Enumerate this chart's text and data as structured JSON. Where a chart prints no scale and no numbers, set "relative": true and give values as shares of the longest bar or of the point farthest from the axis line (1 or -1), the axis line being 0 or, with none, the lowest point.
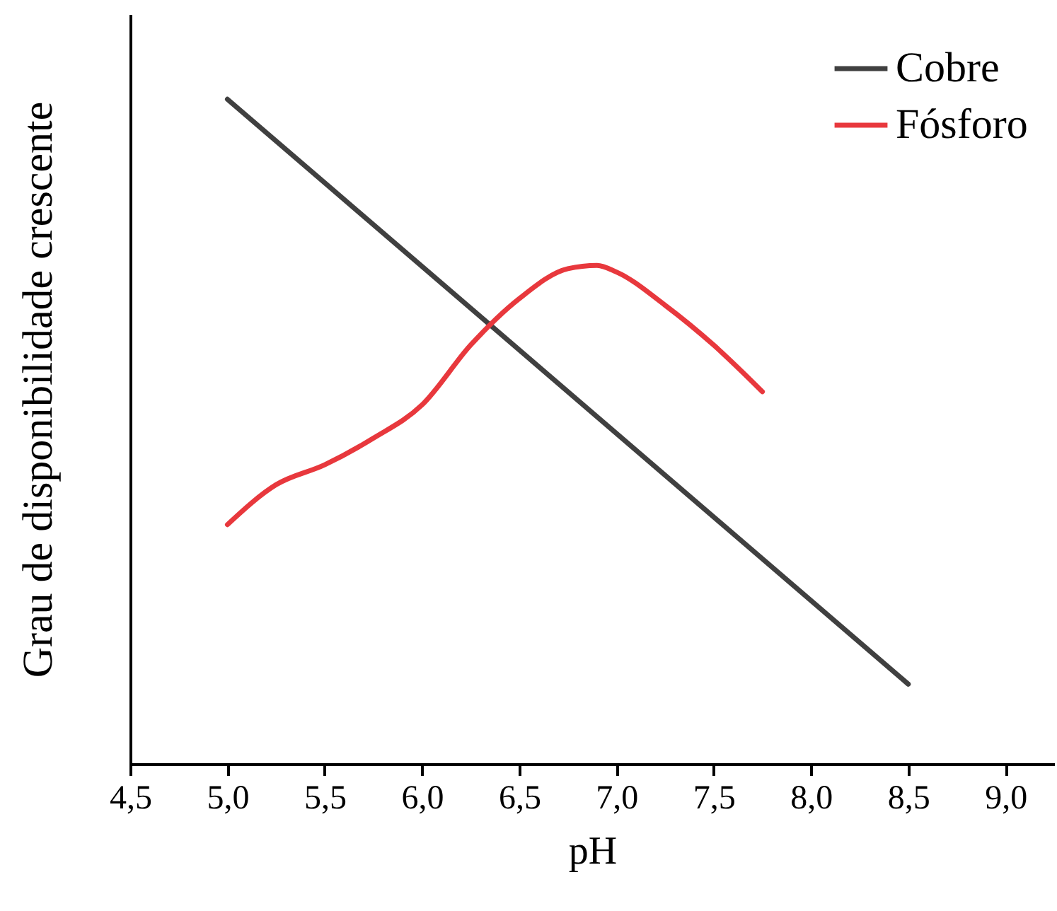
{
  "chart_data": {
    "type": "line",
    "xlabel": "pH",
    "ylabel": "Grau de disponibilidade crescente",
    "relative": true,
    "grid": false,
    "legend": "top right",
    "marker": "none",
    "line_style": "solid",
    "xlim": [
      4.5,
      9.25
    ],
    "xticks": [
      {
        "value": 4.5,
        "label": "4,5"
      },
      {
        "value": 5,
        "label": "5,0"
      },
      {
        "value": 5.5,
        "label": "5,5"
      },
      {
        "value": 6,
        "label": "6,0"
      },
      {
        "value": 6.5,
        "label": "6,5"
      },
      {
        "value": 7,
        "label": "7,0"
      },
      {
        "value": 7.5,
        "label": "7,5"
      },
      {
        "value": 8,
        "label": "8,0"
      },
      {
        "value": 8.5,
        "label": "8,5"
      },
      {
        "value": 9,
        "label": "9,0"
      }
    ],
    "series": [
      {
        "name": "Cobre",
        "color": "#404040",
        "x": [
          5.0,
          8.5
        ],
        "values": [
          1,
          0.12
        ]
      },
      {
        "name": "Fósforo",
        "color": "#e8383d",
        "x": [
          5.0,
          5.25,
          5.5,
          5.75,
          6.0,
          6.25,
          6.5,
          6.75,
          6.9,
          7.0,
          7.25,
          7.5,
          7.75
        ],
        "values": [
          0.36,
          0.42,
          0.45,
          0.49,
          0.54,
          0.63,
          0.7,
          0.745,
          0.75,
          0.74,
          0.69,
          0.63,
          0.56
        ]
      }
    ]
  }
}
